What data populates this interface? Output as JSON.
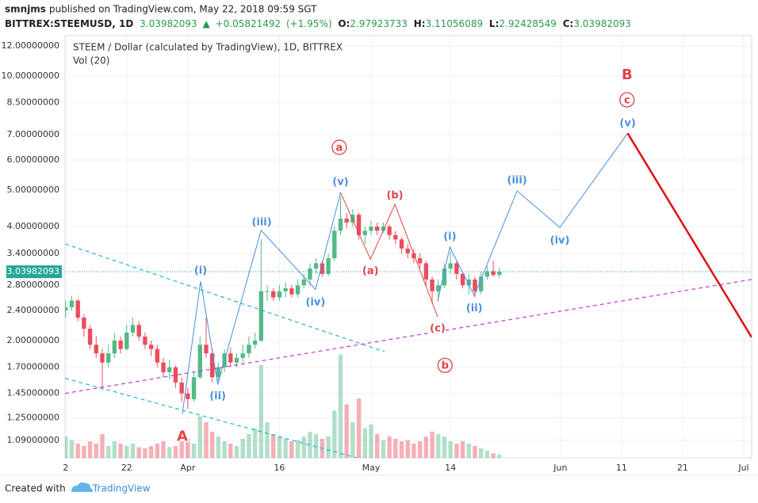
{
  "header": {
    "author": "smnjms",
    "published": "published on TradingView.com, May 22, 2018 09:59 SGT",
    "symbol": "BITTREX:STEEMUSD, 1D",
    "change": "+0.05821492",
    "change_pct": "(+1.95%)",
    "open_label": "O:",
    "high_label": "H:",
    "low_label": "L:",
    "close_label": "C:"
  },
  "chart_data": {
    "type": "candlestick",
    "title": "STEEM / Dollar (calculated by TradingView), 1D, BITTREX",
    "subtitle": "Vol (20)",
    "x": [
      71,
      72,
      73,
      74,
      75,
      76,
      77,
      78,
      79,
      80,
      81,
      82,
      83,
      84,
      85,
      86,
      87,
      88,
      89,
      90,
      91,
      92,
      93,
      94,
      95,
      96,
      97,
      98,
      99,
      100,
      101,
      102,
      103,
      104,
      105,
      106,
      107,
      108,
      109,
      110,
      111,
      112,
      113,
      114,
      115,
      116,
      117,
      118,
      119,
      120,
      121,
      122,
      123,
      124,
      125,
      126,
      127,
      128,
      129,
      130,
      131,
      132,
      133,
      134,
      135,
      136,
      137,
      138,
      139,
      140,
      141,
      142
    ],
    "open": [
      2.4,
      2.45,
      2.55,
      2.3,
      2.15,
      1.95,
      1.85,
      1.75,
      1.85,
      2.0,
      1.9,
      2.1,
      2.2,
      2.05,
      1.95,
      1.9,
      1.75,
      1.65,
      1.7,
      1.55,
      1.45,
      1.4,
      1.6,
      1.95,
      1.85,
      1.6,
      1.7,
      1.85,
      1.75,
      1.8,
      1.85,
      1.95,
      2.0,
      2.7,
      2.7,
      2.6,
      2.7,
      2.75,
      2.65,
      2.8,
      2.9,
      3.1,
      3.2,
      3.0,
      3.3,
      3.9,
      4.2,
      4.1,
      4.3,
      3.8,
      3.9,
      4.0,
      3.9,
      4.0,
      3.8,
      3.7,
      3.5,
      3.4,
      3.3,
      3.2,
      2.9,
      2.7,
      2.8,
      3.1,
      3.2,
      3.0,
      2.8,
      2.9,
      2.7,
      2.95,
      3.05,
      2.97923733
    ],
    "high": [
      2.55,
      2.62,
      2.58,
      2.35,
      2.2,
      2.05,
      1.9,
      1.95,
      2.1,
      2.05,
      2.2,
      2.3,
      2.25,
      2.1,
      2.0,
      1.95,
      1.8,
      1.78,
      1.72,
      1.6,
      1.5,
      1.65,
      2.05,
      2.3,
      1.9,
      1.75,
      1.9,
      1.92,
      1.85,
      1.95,
      2.05,
      2.1,
      3.7,
      2.8,
      2.75,
      2.8,
      2.85,
      2.8,
      2.9,
      3.0,
      3.2,
      3.3,
      3.25,
      3.4,
      4.0,
      4.8,
      4.35,
      4.45,
      4.35,
      4.0,
      4.15,
      4.1,
      4.1,
      4.05,
      3.9,
      3.75,
      3.6,
      3.5,
      3.4,
      3.25,
      2.95,
      2.9,
      3.2,
      3.45,
      3.25,
      3.05,
      3.0,
      2.95,
      3.05,
      3.15,
      3.25,
      3.11056089
    ],
    "low": [
      2.3,
      2.4,
      2.25,
      2.05,
      1.9,
      1.8,
      1.48,
      1.7,
      1.8,
      1.85,
      1.88,
      2.05,
      2.0,
      1.9,
      1.82,
      1.7,
      1.6,
      1.58,
      1.5,
      1.38,
      1.32,
      1.38,
      1.58,
      1.8,
      1.55,
      1.55,
      1.65,
      1.7,
      1.7,
      1.75,
      1.8,
      1.9,
      1.98,
      2.55,
      2.55,
      2.55,
      2.6,
      2.6,
      2.6,
      2.75,
      2.8,
      3.0,
      2.95,
      2.95,
      3.25,
      3.8,
      3.95,
      4.0,
      3.7,
      3.6,
      3.8,
      3.8,
      3.85,
      3.7,
      3.6,
      3.4,
      3.3,
      3.2,
      3.1,
      2.8,
      2.5,
      2.55,
      2.75,
      3.0,
      2.9,
      2.75,
      2.65,
      2.6,
      2.65,
      2.9,
      2.95,
      2.92428549
    ],
    "close": [
      2.45,
      2.55,
      2.3,
      2.15,
      1.95,
      1.85,
      1.75,
      1.85,
      2.0,
      1.9,
      2.1,
      2.2,
      2.05,
      1.95,
      1.9,
      1.75,
      1.65,
      1.7,
      1.55,
      1.45,
      1.4,
      1.6,
      1.95,
      1.85,
      1.6,
      1.7,
      1.85,
      1.75,
      1.8,
      1.85,
      1.95,
      2.0,
      2.7,
      2.7,
      2.6,
      2.7,
      2.75,
      2.65,
      2.8,
      2.9,
      3.1,
      3.2,
      3.0,
      3.3,
      3.9,
      4.2,
      4.1,
      4.3,
      3.8,
      3.9,
      4.0,
      3.9,
      4.0,
      3.8,
      3.7,
      3.5,
      3.4,
      3.3,
      3.2,
      2.9,
      2.7,
      2.8,
      3.1,
      3.2,
      3.0,
      2.8,
      2.9,
      2.7,
      2.95,
      3.05,
      2.98,
      3.03982093
    ],
    "volume": [
      18,
      15,
      12,
      10,
      14,
      12,
      20,
      10,
      14,
      12,
      10,
      12,
      9,
      8,
      10,
      12,
      14,
      9,
      10,
      14,
      16,
      12,
      35,
      30,
      22,
      18,
      14,
      12,
      10,
      16,
      20,
      25,
      78,
      30,
      20,
      18,
      16,
      14,
      15,
      18,
      22,
      20,
      16,
      18,
      40,
      87,
      45,
      30,
      50,
      25,
      28,
      20,
      15,
      18,
      16,
      14,
      15,
      12,
      14,
      18,
      22,
      20,
      18,
      14,
      12,
      14,
      12,
      10,
      8,
      6,
      4,
      3
    ],
    "volume_lim": [
      0,
      100
    ],
    "up_color": "#53b987",
    "down_color": "#eb4d5c",
    "log_y": true,
    "grid": true,
    "xlim": [
      70.9,
      183.3
    ],
    "xticks": [
      {
        "value": 71,
        "label": "2"
      },
      {
        "value": 81,
        "label": "22"
      },
      {
        "value": 91,
        "label": "Apr"
      },
      {
        "value": 106,
        "label": "16"
      },
      {
        "value": 121,
        "label": "May"
      },
      {
        "value": 134,
        "label": "14"
      },
      {
        "value": 152,
        "label": "Jun"
      },
      {
        "value": 162,
        "label": "11"
      },
      {
        "value": 172,
        "label": "21"
      },
      {
        "value": 182,
        "label": "Jul"
      }
    ],
    "ylim": [
      0.98,
      12.78
    ],
    "yticks": [
      {
        "value": 12,
        "label": "12.00000000"
      },
      {
        "value": 10,
        "label": "10.00000000"
      },
      {
        "value": 8.5,
        "label": "8.50000000"
      },
      {
        "value": 7,
        "label": "7.00000000"
      },
      {
        "value": 6,
        "label": "6.00000000"
      },
      {
        "value": 5,
        "label": "5.00000000"
      },
      {
        "value": 4,
        "label": "4.00000000"
      },
      {
        "value": 3.4,
        "label": "3.40000000"
      },
      {
        "value": 2.8,
        "label": "2.80000000"
      },
      {
        "value": 2.4,
        "label": "2.40000000"
      },
      {
        "value": 2,
        "label": "2.00000000"
      },
      {
        "value": 1.7,
        "label": "1.70000000"
      },
      {
        "value": 1.45,
        "label": "1.45000000"
      },
      {
        "value": 1.25,
        "label": "1.25000000"
      },
      {
        "value": 1.09,
        "label": "1.09000000"
      }
    ],
    "lines": [
      {
        "color": "#4a8fdc",
        "width": 1,
        "dash": false,
        "x": [
          90.1,
          93.1,
          95.9,
          103,
          111.9,
          116
        ],
        "y": [
          1.28,
          2.87,
          1.53,
          3.91,
          2.73,
          4.92
        ]
      },
      {
        "color": "#e04444",
        "width": 1,
        "dash": false,
        "x": [
          116,
          120.9,
          124.9,
          131.9
        ],
        "y": [
          4.92,
          3.28,
          4.58,
          2.31
        ]
      },
      {
        "color": "#4a8fdc",
        "width": 1,
        "dash": false,
        "x": [
          131.9,
          133.9,
          137.9,
          144.9,
          151.9,
          163
        ],
        "y": [
          2.54,
          3.53,
          2.63,
          4.97,
          3.98,
          7.06
        ]
      },
      {
        "color": "#e01010",
        "width": 2.5,
        "dash": false,
        "x": [
          163,
          183.3
        ],
        "y": [
          7.06,
          2.04
        ]
      },
      {
        "color": "#22b8cf",
        "width": 1.2,
        "dash": true,
        "x": [
          70.9,
          123.2
        ],
        "y": [
          3.6,
          1.87
        ]
      },
      {
        "color": "#22b8cf",
        "width": 1.2,
        "dash": true,
        "x": [
          70.9,
          118.7
        ],
        "y": [
          1.59,
          0.98
        ]
      },
      {
        "color": "#c23ad0",
        "width": 1.2,
        "dash": true,
        "x": [
          70.9,
          183.3
        ],
        "y": [
          1.45,
          2.9
        ]
      }
    ],
    "annotations": [
      {
        "text": "(i)",
        "x": 93.1,
        "y": 3.07,
        "color": "#4a8fdc",
        "circled": false
      },
      {
        "text": "(ii)",
        "x": 95.9,
        "y": 1.43,
        "color": "#4a8fdc",
        "circled": false
      },
      {
        "text": "(iii)",
        "x": 103.1,
        "y": 4.12,
        "color": "#4a8fdc",
        "circled": false
      },
      {
        "text": "(iv)",
        "x": 111.9,
        "y": 2.53,
        "color": "#4a8fdc",
        "circled": false
      },
      {
        "text": "(v)",
        "x": 116,
        "y": 5.27,
        "color": "#4a8fdc",
        "circled": false
      },
      {
        "text": "a",
        "x": 115.8,
        "y": 6.48,
        "color": "#e04444",
        "circled": true
      },
      {
        "text": "(b)",
        "x": 124.9,
        "y": 4.85,
        "color": "#e04444",
        "circled": false
      },
      {
        "text": "(a)",
        "x": 120.9,
        "y": 3.06,
        "color": "#e04444",
        "circled": false
      },
      {
        "text": "(c)",
        "x": 131.9,
        "y": 2.16,
        "color": "#e04444",
        "circled": false
      },
      {
        "text": "b",
        "x": 133.1,
        "y": 1.72,
        "color": "#e04444",
        "circled": true
      },
      {
        "text": "(i)",
        "x": 133.9,
        "y": 3.78,
        "color": "#4a8fdc",
        "circled": false
      },
      {
        "text": "(ii)",
        "x": 137.9,
        "y": 2.44,
        "color": "#4a8fdc",
        "circled": false
      },
      {
        "text": "(iii)",
        "x": 144.9,
        "y": 5.32,
        "color": "#4a8fdc",
        "circled": false
      },
      {
        "text": "(iv)",
        "x": 151.9,
        "y": 3.69,
        "color": "#4a8fdc",
        "circled": false
      },
      {
        "text": "(v)",
        "x": 163,
        "y": 7.52,
        "color": "#4a8fdc",
        "circled": false
      },
      {
        "text": "c",
        "x": 162.9,
        "y": 8.65,
        "color": "#e04444",
        "circled": true
      },
      {
        "text": "B",
        "x": 162.9,
        "y": 10.09,
        "color": "#e04444",
        "circled": false
      },
      {
        "text": "A",
        "x": 90.1,
        "y": 1.12,
        "color": "#e04444",
        "circled": false
      }
    ]
  },
  "footer": {
    "created": "Created with",
    "brand": "TradingView"
  }
}
